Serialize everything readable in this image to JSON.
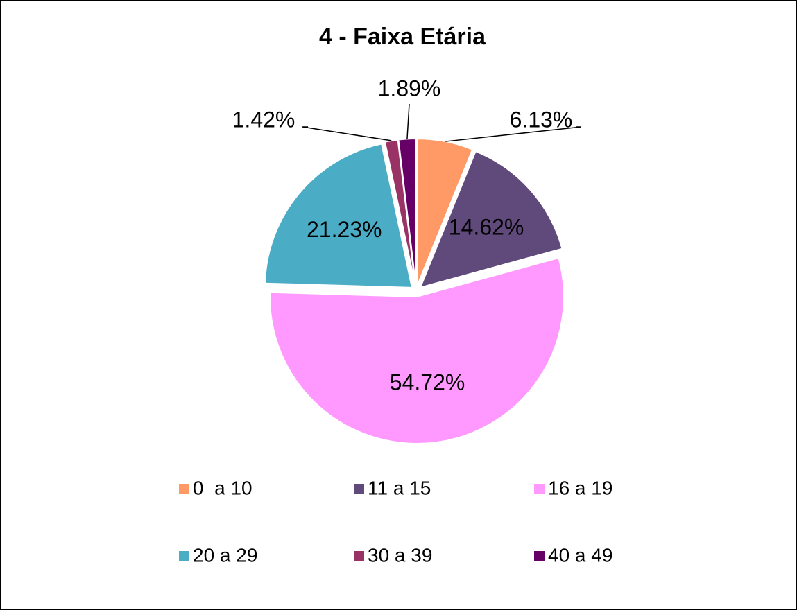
{
  "chart_data": {
    "type": "pie",
    "title": "4 - Faixa Etária",
    "categories": [
      "0  a 10",
      "11 a 15",
      "16 a 19",
      "20 a 29",
      "30 a 39",
      "40 a 49"
    ],
    "values": [
      6.13,
      14.62,
      54.72,
      21.23,
      1.42,
      1.89
    ],
    "value_labels": [
      "6.13%",
      "14.62%",
      "54.72%",
      "21.23%",
      "1.42%",
      "1.89%"
    ],
    "colors": [
      "#FF9966",
      "#604A7B",
      "#FF99FF",
      "#4BACC6",
      "#993366",
      "#660066"
    ],
    "legend": "bottom"
  }
}
